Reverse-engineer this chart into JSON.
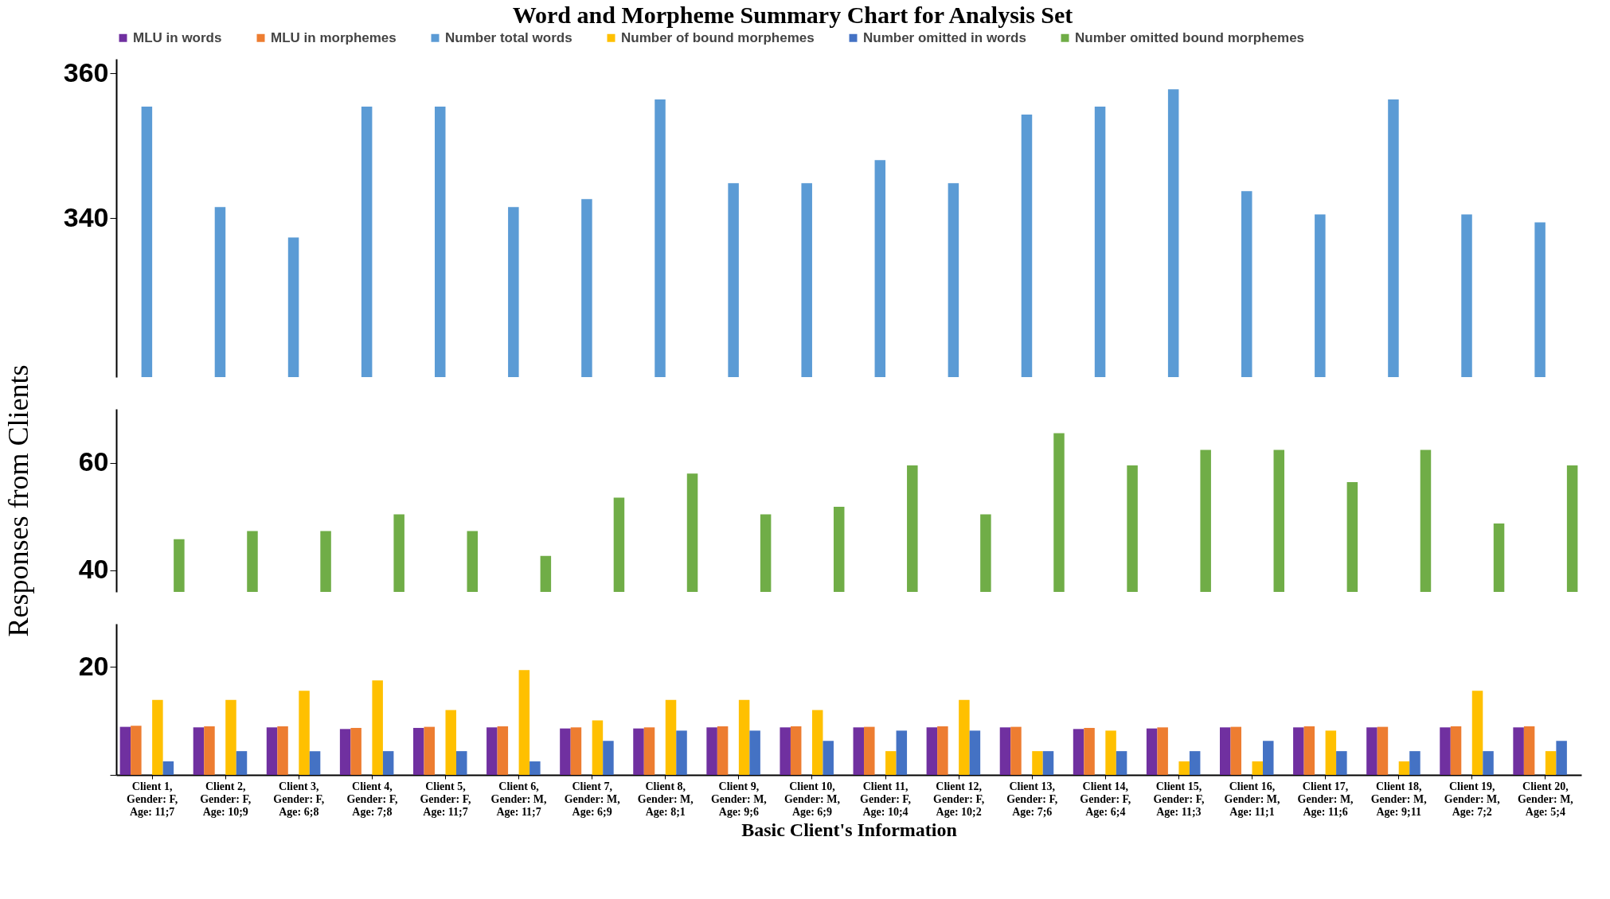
{
  "chart_data": [
    {
      "type": "bar",
      "title": "Word and Morpheme Summary Chart for Analysis Set",
      "legend": "top",
      "tick_labels": "y",
      "categories": [
        "Client 1,\nGender: F,\nAge: 11;7",
        "Client 2,\nGender: F,\nAge: 10;9",
        "Client 3,\nGender: F,\nAge: 6;8",
        "Client 4,\nGender: F,\nAge: 7;8",
        "Client 5,\nGender: F,\nAge: 11;7",
        "Client 6,\nGender: M,\nAge: 11;7",
        "Client 7,\nGender: M,\nAge: 6;9",
        "Client 8,\nGender: M,\nAge: 8;1",
        "Client 9,\nGender: M,\nAge: 9;6",
        "Client 10,\nGender: M,\nAge: 6;9",
        "Client 11,\nGender: F,\nAge: 10;4",
        "Client 12,\nGender: F,\nAge: 10;2",
        "Client 13,\nGender: F,\nAge: 7;6",
        "Client 14,\nGender: F,\nAge: 6;4",
        "Client 15,\nGender: F,\nAge: 11;3",
        "Client 16,\nGender: M,\nAge: 11;1",
        "Client 17,\nGender: M,\nAge: 11;6",
        "Client 18,\nGender: M,\nAge: 9;11",
        "Client 19,\nGender: M,\nAge: 7;2",
        "Client 20,\nGender: M,\nAge: 5;4"
      ],
      "ylim": [
        318,
        362
      ],
      "yticks": [
        340,
        360
      ],
      "series": [
        {
          "name": "Number total words",
          "color": "#5b9bd5",
          "values": [
            355.4,
            341.5,
            337.3,
            355.4,
            355.4,
            341.5,
            342.6,
            356.4,
            344.8,
            344.8,
            348,
            344.8,
            354.3,
            355.4,
            357.8,
            343.7,
            340.5,
            356.4,
            340.5,
            339.4
          ]
        }
      ]
    },
    {
      "type": "bar",
      "ylabel": "Responses from Clients",
      "tick_labels": "y",
      "legend": "top",
      "categories": [
        "Client 1,\nGender: F,\nAge: 11;7",
        "Client 2,\nGender: F,\nAge: 10;9",
        "Client 3,\nGender: F,\nAge: 6;8",
        "Client 4,\nGender: F,\nAge: 7;8",
        "Client 5,\nGender: F,\nAge: 11;7",
        "Client 6,\nGender: M,\nAge: 11;7",
        "Client 7,\nGender: M,\nAge: 6;9",
        "Client 8,\nGender: M,\nAge: 8;1",
        "Client 9,\nGender: M,\nAge: 9;6",
        "Client 10,\nGender: M,\nAge: 6;9",
        "Client 11,\nGender: F,\nAge: 10;4",
        "Client 12,\nGender: F,\nAge: 10;2",
        "Client 13,\nGender: F,\nAge: 7;6",
        "Client 14,\nGender: F,\nAge: 6;4",
        "Client 15,\nGender: F,\nAge: 11;3",
        "Client 16,\nGender: M,\nAge: 11;1",
        "Client 17,\nGender: M,\nAge: 11;6",
        "Client 18,\nGender: M,\nAge: 9;11",
        "Client 19,\nGender: M,\nAge: 7;2",
        "Client 20,\nGender: M,\nAge: 5;4"
      ],
      "ylim": [
        36,
        70
      ],
      "yticks": [
        40,
        60
      ],
      "series": [
        {
          "name": "Number omitted bound morphemes",
          "color": "#70ad47",
          "values": [
            45.8,
            47.3,
            47.3,
            50.4,
            47.3,
            42.7,
            53.5,
            58,
            50.4,
            51.8,
            59.5,
            50.4,
            65.5,
            59.5,
            62.4,
            62.4,
            56.4,
            62.4,
            48.7,
            59.5
          ]
        }
      ]
    },
    {
      "type": "bar",
      "xlabel": "Basic Client's Information",
      "legend": "top",
      "categories": [
        "Client 1,\nGender: F,\nAge: 11;7",
        "Client 2,\nGender: F,\nAge: 10;9",
        "Client 3,\nGender: F,\nAge: 6;8",
        "Client 4,\nGender: F,\nAge: 7;8",
        "Client 5,\nGender: F,\nAge: 11;7",
        "Client 6,\nGender: M,\nAge: 11;7",
        "Client 7,\nGender: M,\nAge: 6;9",
        "Client 8,\nGender: M,\nAge: 8;1",
        "Client 9,\nGender: M,\nAge: 9;6",
        "Client 10,\nGender: M,\nAge: 6;9",
        "Client 11,\nGender: F,\nAge: 10;4",
        "Client 12,\nGender: F,\nAge: 10;2",
        "Client 13,\nGender: F,\nAge: 7;6",
        "Client 14,\nGender: F,\nAge: 6;4",
        "Client 15,\nGender: F,\nAge: 11;3",
        "Client 16,\nGender: M,\nAge: 11;1",
        "Client 17,\nGender: M,\nAge: 11;6",
        "Client 18,\nGender: M,\nAge: 9;11",
        "Client 19,\nGender: M,\nAge: 7;2",
        "Client 20,\nGender: M,\nAge: 5;4"
      ],
      "ylim": [
        0,
        28
      ],
      "yticks": [
        {
          "value": 0,
          "label": null
        },
        20
      ],
      "series": [
        {
          "name": "MLU in words",
          "color": "#7030a0",
          "values": [
            8.9,
            8.8,
            8.8,
            8.5,
            8.7,
            8.8,
            8.6,
            8.6,
            8.8,
            8.8,
            8.8,
            8.8,
            8.8,
            8.5,
            8.6,
            8.8,
            8.8,
            8.8,
            8.8,
            8.8
          ]
        },
        {
          "name": "MLU in morphemes",
          "color": "#ed7d31",
          "values": [
            9.1,
            9,
            9,
            8.7,
            8.9,
            9,
            8.8,
            8.8,
            9,
            9,
            8.9,
            9,
            8.9,
            8.7,
            8.8,
            8.9,
            9,
            8.9,
            9,
            9
          ]
        },
        {
          "name": "Number of bound morphemes",
          "color": "#ffc000",
          "values": [
            13.9,
            13.9,
            15.6,
            17.5,
            12,
            19.4,
            10.1,
            13.9,
            13.9,
            12,
            4.4,
            13.9,
            4.4,
            8.2,
            2.5,
            2.5,
            8.2,
            2.5,
            15.6,
            4.4
          ]
        },
        {
          "name": "Number omitted in words",
          "color": "#4472c4",
          "values": [
            2.5,
            4.4,
            4.4,
            4.4,
            4.4,
            2.5,
            6.3,
            8.2,
            8.2,
            6.3,
            8.2,
            8.2,
            4.4,
            4.4,
            4.4,
            6.3,
            4.4,
            4.4,
            4.4,
            6.3
          ]
        }
      ]
    }
  ]
}
